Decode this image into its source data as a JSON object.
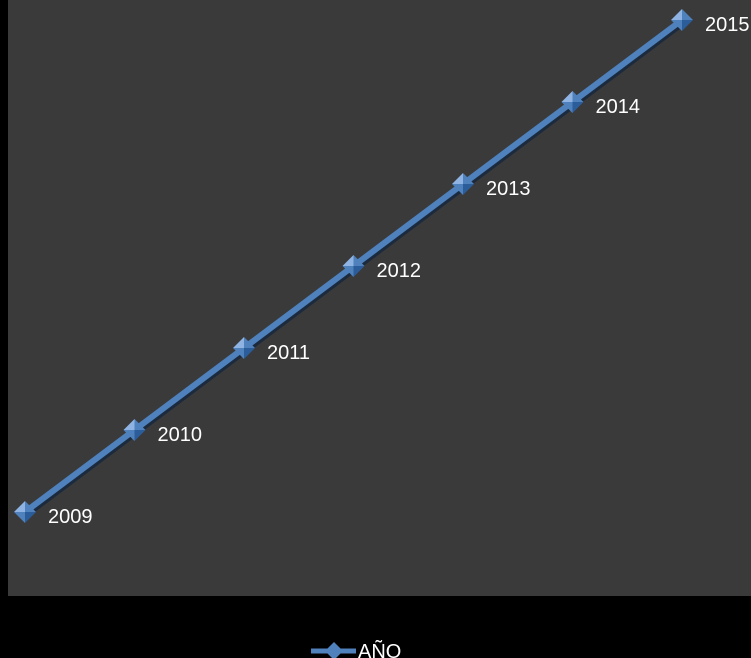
{
  "chart_data": {
    "type": "line",
    "title": "",
    "xlabel": "",
    "ylabel": "",
    "x": [
      1,
      2,
      3,
      4,
      5,
      6,
      7
    ],
    "series": [
      {
        "name": "AÑO",
        "values": [
          2009,
          2010,
          2011,
          2012,
          2013,
          2014,
          2015
        ],
        "data_labels": [
          "2009",
          "2010",
          "2011",
          "2012",
          "2013",
          "2014",
          "2015"
        ],
        "color": "#4f81bd",
        "marker": "diamond"
      }
    ],
    "ylim": [
      2009,
      2015
    ],
    "grid": false,
    "legend_position": "bottom"
  },
  "colors": {
    "plot_background": "#3a3a3a",
    "page_background": "#000000",
    "series_line": "#4f81bd",
    "marker_light": "#8fb4e3",
    "marker_dark": "#2c5d9b",
    "text": "#ffffff"
  }
}
